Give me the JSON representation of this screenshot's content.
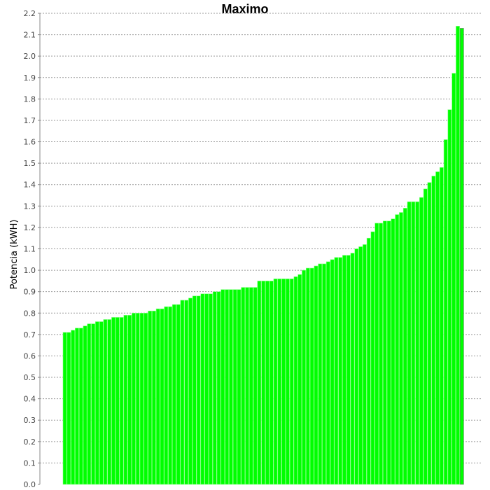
{
  "chart_data": {
    "type": "bar",
    "title": "Maximo",
    "xlabel": "",
    "ylabel": "Potencia (kWH)",
    "ylim": [
      0,
      2.2
    ],
    "yticks": [
      "0.0",
      "0.1",
      "0.2",
      "0.3",
      "0.4",
      "0.5",
      "0.6",
      "0.7",
      "0.8",
      "0.9",
      "1.0",
      "1.1",
      "1.2",
      "1.3",
      "1.4",
      "1.5",
      "1.6",
      "1.7",
      "1.8",
      "1.9",
      "2.0",
      "2.1",
      "2.2"
    ],
    "grid": true,
    "sort": "ascending",
    "colors": {
      "bar": "#00ff00",
      "bar_edge": "#88ff88",
      "last_bar_edge": "#777777",
      "grid": "#999999",
      "axis": "#888888"
    },
    "values": [
      0.71,
      0.71,
      0.72,
      0.73,
      0.73,
      0.74,
      0.75,
      0.75,
      0.76,
      0.76,
      0.77,
      0.77,
      0.78,
      0.78,
      0.78,
      0.79,
      0.79,
      0.8,
      0.8,
      0.8,
      0.8,
      0.81,
      0.81,
      0.82,
      0.82,
      0.83,
      0.83,
      0.84,
      0.84,
      0.86,
      0.86,
      0.87,
      0.88,
      0.88,
      0.89,
      0.89,
      0.89,
      0.9,
      0.9,
      0.91,
      0.91,
      0.91,
      0.91,
      0.91,
      0.92,
      0.92,
      0.92,
      0.92,
      0.95,
      0.95,
      0.95,
      0.95,
      0.96,
      0.96,
      0.96,
      0.96,
      0.96,
      0.97,
      0.98,
      1.0,
      1.01,
      1.01,
      1.02,
      1.03,
      1.03,
      1.04,
      1.05,
      1.06,
      1.06,
      1.07,
      1.07,
      1.08,
      1.1,
      1.11,
      1.12,
      1.15,
      1.18,
      1.22,
      1.22,
      1.23,
      1.23,
      1.24,
      1.26,
      1.27,
      1.29,
      1.32,
      1.32,
      1.32,
      1.34,
      1.38,
      1.41,
      1.44,
      1.46,
      1.48,
      1.61,
      1.75,
      1.92,
      2.14,
      2.13
    ]
  }
}
